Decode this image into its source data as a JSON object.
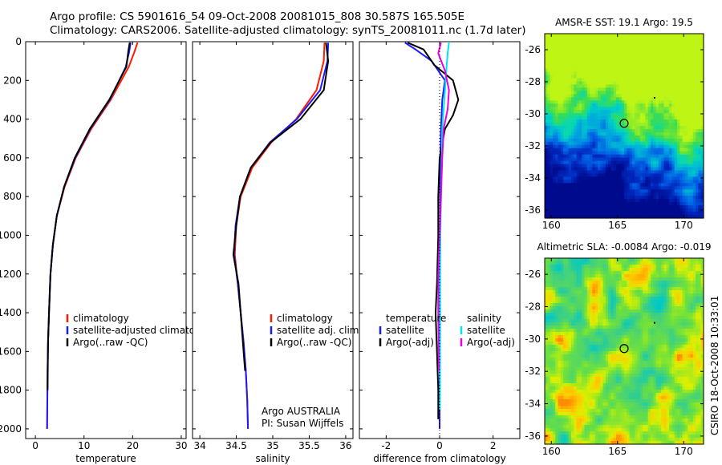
{
  "header": {
    "line1": "Argo profile: CS 5901616_54 09-Oct-2008 20081015_808 30.587S 165.505E",
    "line2": "Climatology: CARS2006. Satellite-adjusted climatology: synTS_20081011.nc (1.7d later)"
  },
  "credits": {
    "argo_line1": "Argo AUSTRALIA",
    "argo_line2": "PI: Susan Wijffels",
    "stamp": "CSIRO 18-Oct-2008 10:33:01"
  },
  "colors": {
    "climatology": "#ff1a00",
    "satellite": "#1a1aff",
    "argo": "#000000",
    "sal_satellite": "#00e5ee",
    "sal_argo": "#e600e6"
  },
  "chart_data": [
    {
      "type": "line",
      "name": "temperature-profile",
      "xlabel": "temperature",
      "xlim": [
        -2,
        31
      ],
      "ylim": [
        0,
        2050
      ],
      "y_reversed": true,
      "xticks": [
        0,
        10,
        20,
        30
      ],
      "yticks": [
        0,
        200,
        400,
        600,
        800,
        1000,
        1200,
        1400,
        1600,
        1800,
        2000
      ],
      "legend": [
        "climatology",
        "satellite-adjusted climatology",
        "Argo(..raw -QC)"
      ],
      "series": [
        {
          "name": "climatology",
          "color": "#ff1a00",
          "x": [
            21.0,
            20.4,
            19.2,
            15.5,
            11.5,
            8.3,
            6.0,
            4.4,
            3.6,
            3.1,
            2.8,
            2.6,
            2.5,
            2.45,
            2.4
          ],
          "y": [
            5,
            50,
            130,
            300,
            450,
            600,
            750,
            900,
            1050,
            1200,
            1400,
            1550,
            1700,
            1850,
            2000
          ]
        },
        {
          "name": "satellite-adjusted climatology",
          "color": "#1a1aff",
          "x": [
            19.6,
            19.3,
            18.6,
            15.3,
            11.3,
            8.2,
            5.9,
            4.4,
            3.6,
            3.1,
            2.8,
            2.6,
            2.5,
            2.45,
            2.4
          ],
          "y": [
            5,
            50,
            130,
            300,
            450,
            600,
            750,
            900,
            1050,
            1200,
            1400,
            1550,
            1700,
            1850,
            2000
          ]
        },
        {
          "name": "Argo(..raw -QC)",
          "color": "#000000",
          "x": [
            19.4,
            19.1,
            18.7,
            15.2,
            11.2,
            8.1,
            5.9,
            4.4,
            3.6,
            3.1,
            2.8,
            2.6,
            2.5
          ],
          "y": [
            5,
            50,
            130,
            300,
            450,
            600,
            750,
            900,
            1050,
            1200,
            1400,
            1550,
            1800
          ]
        }
      ]
    },
    {
      "type": "line",
      "name": "salinity-profile",
      "xlabel": "salinity",
      "xlim": [
        33.9,
        36.1
      ],
      "ylim": [
        0,
        2050
      ],
      "y_reversed": true,
      "xticks": [
        34,
        34.5,
        35,
        35.5,
        36
      ],
      "yticks": [
        0,
        200,
        400,
        600,
        800,
        1000,
        1200,
        1400,
        1600,
        1800,
        2000
      ],
      "legend": [
        "climatology",
        "satellite adj. clim.",
        "Argo(..raw -QC)"
      ],
      "series": [
        {
          "name": "climatology",
          "color": "#ff1a00",
          "x": [
            35.71,
            35.7,
            35.6,
            35.32,
            34.98,
            34.72,
            34.56,
            34.5,
            34.48,
            34.52,
            34.56,
            34.6,
            34.63,
            34.65,
            34.66
          ],
          "y": [
            5,
            100,
            250,
            400,
            520,
            650,
            800,
            950,
            1100,
            1250,
            1400,
            1550,
            1700,
            1850,
            2000
          ]
        },
        {
          "name": "satellite adj. clim.",
          "color": "#1a1aff",
          "x": [
            35.76,
            35.75,
            35.65,
            35.33,
            34.96,
            34.7,
            34.55,
            34.49,
            34.47,
            34.52,
            34.56,
            34.6,
            34.63,
            34.65,
            34.66
          ],
          "y": [
            5,
            100,
            250,
            400,
            520,
            650,
            800,
            950,
            1100,
            1250,
            1400,
            1550,
            1700,
            1850,
            2000
          ]
        },
        {
          "name": "Argo(..raw -QC)",
          "color": "#000000",
          "x": [
            35.73,
            35.76,
            35.7,
            35.38,
            34.97,
            34.7,
            34.55,
            34.5,
            34.46,
            34.53,
            34.56,
            34.59,
            34.62
          ],
          "y": [
            5,
            100,
            250,
            400,
            520,
            650,
            800,
            950,
            1100,
            1250,
            1400,
            1550,
            1700
          ]
        }
      ]
    },
    {
      "type": "line",
      "name": "difference-profile",
      "xlabel": "difference from climatology",
      "xlim": [
        -3,
        3
      ],
      "ylim": [
        0,
        2050
      ],
      "y_reversed": true,
      "xticks": [
        -2,
        0,
        2
      ],
      "yticks": [
        0,
        200,
        400,
        600,
        800,
        1000,
        1200,
        1400,
        1600,
        1800,
        2000
      ],
      "legend_left_title": "temperature",
      "legend_left": [
        "satellite",
        "Argo(-adj)"
      ],
      "legend_right_title": "salinity",
      "legend_right": [
        "satellite",
        "Argo(-adj)"
      ],
      "series": [
        {
          "name": "temperature satellite",
          "color": "#1a1aff",
          "x": [
            -1.3,
            -0.9,
            -0.3,
            0.2,
            0.1,
            0.05,
            0.03,
            0.02,
            0.02,
            0.01,
            0.01,
            0.0,
            0.0
          ],
          "y": [
            5,
            40,
            100,
            200,
            300,
            450,
            600,
            800,
            1000,
            1200,
            1500,
            1800,
            2000
          ]
        },
        {
          "name": "temperature Argo(-adj)",
          "color": "#000000",
          "x": [
            -1.2,
            -0.6,
            -0.2,
            0.5,
            0.7,
            0.5,
            0.2,
            0.0,
            -0.05,
            -0.05,
            -0.1,
            -0.15,
            -0.1,
            -0.05,
            -0.05
          ],
          "y": [
            5,
            40,
            120,
            200,
            300,
            380,
            450,
            600,
            800,
            1000,
            1250,
            1400,
            1600,
            1800,
            1950
          ]
        },
        {
          "name": "salinity satellite",
          "color": "#00e5ee",
          "x": [
            0.35,
            0.3,
            0.25,
            0.2,
            0.15,
            0.1,
            0.08,
            0.05,
            0.03,
            0.02,
            0.02,
            0.01
          ],
          "y": [
            5,
            60,
            150,
            250,
            350,
            450,
            600,
            800,
            1000,
            1200,
            1500,
            1900
          ]
        },
        {
          "name": "salinity Argo(-adj)",
          "color": "#e600e6",
          "x": [
            0.05,
            -0.05,
            0.2,
            0.35,
            0.3,
            0.15,
            0.1,
            0.05,
            0.0,
            -0.05,
            -0.05,
            -0.03
          ],
          "y": [
            5,
            60,
            150,
            250,
            350,
            450,
            600,
            800,
            1000,
            1200,
            1400,
            1700
          ]
        }
      ]
    },
    {
      "type": "heatmap",
      "name": "amsre-sst-map",
      "title": "AMSR-E SST: 19.1 Argo: 19.5",
      "xlim": [
        159.5,
        171.5
      ],
      "ylim": [
        -36.5,
        -25.0
      ],
      "xticks": [
        160,
        165,
        170
      ],
      "yticks": [
        -26,
        -28,
        -30,
        -32,
        -34,
        -36
      ],
      "argo_position": {
        "lon": 165.5,
        "lat": -30.59
      }
    },
    {
      "type": "heatmap",
      "name": "altimetric-sla-map",
      "title": "Altimetric SLA: -0.0084 Argo: -0.019",
      "xlim": [
        159.5,
        171.5
      ],
      "ylim": [
        -36.5,
        -25.0
      ],
      "xticks": [
        160,
        165,
        170
      ],
      "yticks": [
        -26,
        -28,
        -30,
        -32,
        -34,
        -36
      ],
      "argo_position": {
        "lon": 165.5,
        "lat": -30.59
      }
    }
  ]
}
